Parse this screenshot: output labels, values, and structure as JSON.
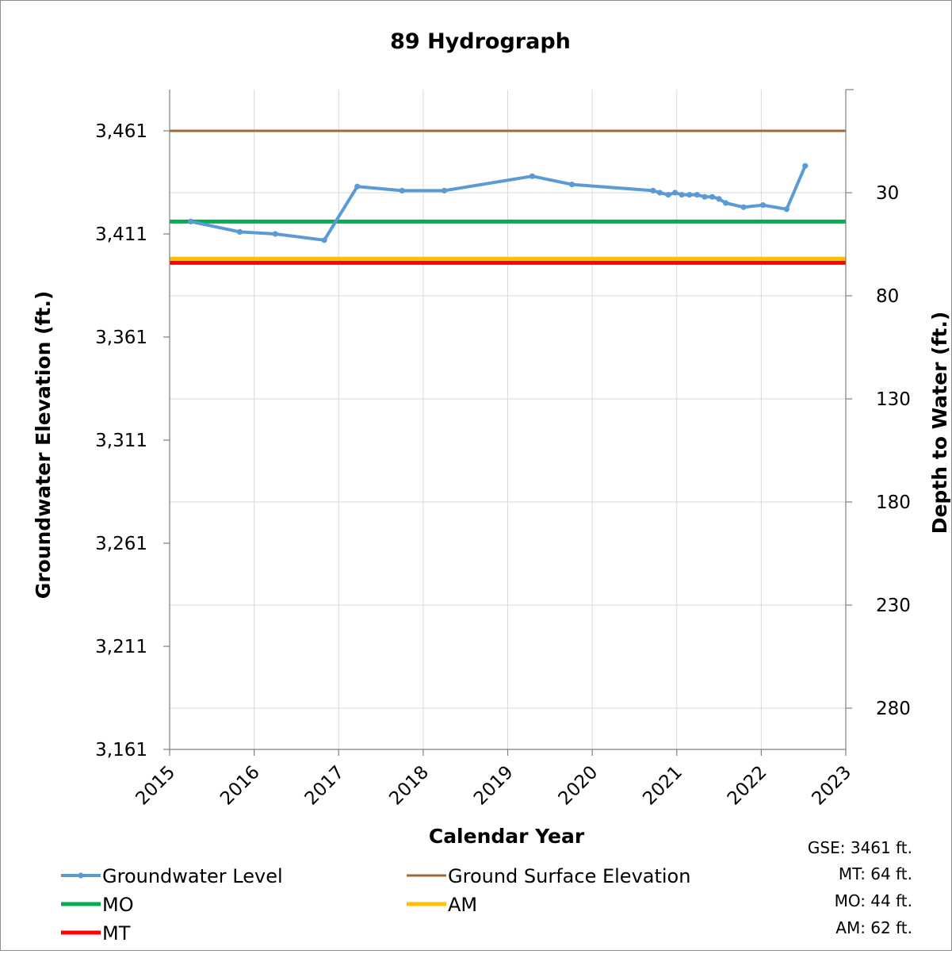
{
  "chart_data": {
    "type": "line",
    "title": "89 Hydrograph",
    "xlabel": "Calendar Year",
    "ylabel": "Groundwater Elevation (ft.)",
    "y2label": "Depth to Water (ft.)",
    "xlim": [
      2015,
      2023
    ],
    "ylim": [
      3161,
      3481
    ],
    "y2lim": [
      -20,
      300
    ],
    "x_ticks": [
      2015,
      2016,
      2017,
      2018,
      2019,
      2020,
      2021,
      2022,
      2023
    ],
    "x_tick_labels": [
      "2015",
      "2016",
      "2017",
      "2018",
      "2019",
      "2020",
      "2021",
      "2022",
      "2023"
    ],
    "y_ticks": [
      3161,
      3211,
      3261,
      3311,
      3361,
      3411,
      3461
    ],
    "y_tick_labels": [
      "3,161",
      "3,211",
      "3,261",
      "3,311",
      "3,361",
      "3,411",
      "3,461"
    ],
    "y2_ticks": [
      30,
      80,
      130,
      180,
      230,
      280
    ],
    "y2_tick_labels": [
      "30",
      "80",
      "130",
      "180",
      "230",
      "280"
    ],
    "grid": "vertical and horizontal major gridlines",
    "legend_position": "bottom",
    "series": [
      {
        "name": "Groundwater Level",
        "color": "#5b9bd5",
        "markers": true,
        "points": [
          [
            2015.25,
            3417
          ],
          [
            2015.83,
            3412
          ],
          [
            2016.25,
            3411
          ],
          [
            2016.83,
            3408
          ],
          [
            2017.22,
            3434
          ],
          [
            2017.75,
            3432
          ],
          [
            2018.25,
            3432
          ],
          [
            2019.29,
            3439
          ],
          [
            2019.76,
            3435
          ],
          [
            2020.72,
            3432
          ],
          [
            2020.8,
            3431
          ],
          [
            2020.9,
            3430
          ],
          [
            2020.98,
            3431
          ],
          [
            2021.06,
            3430
          ],
          [
            2021.15,
            3430
          ],
          [
            2021.24,
            3430
          ],
          [
            2021.33,
            3429
          ],
          [
            2021.42,
            3429
          ],
          [
            2021.5,
            3428
          ],
          [
            2021.58,
            3426
          ],
          [
            2021.79,
            3424
          ],
          [
            2022.02,
            3425
          ],
          [
            2022.3,
            3423
          ],
          [
            2022.52,
            3444
          ]
        ]
      },
      {
        "name": "Ground Surface Elevation",
        "color": "#9e6a38",
        "y": 3461
      },
      {
        "name": "MO",
        "color": "#00b050",
        "y": 3417
      },
      {
        "name": "AM",
        "color": "#ffc000",
        "y": 3399
      },
      {
        "name": "MT",
        "color": "#ff0000",
        "y": 3397
      }
    ],
    "annotations": [
      "GSE: 3461 ft.",
      "MT: 64 ft.",
      "MO: 44 ft.",
      "AM: 62 ft."
    ]
  }
}
